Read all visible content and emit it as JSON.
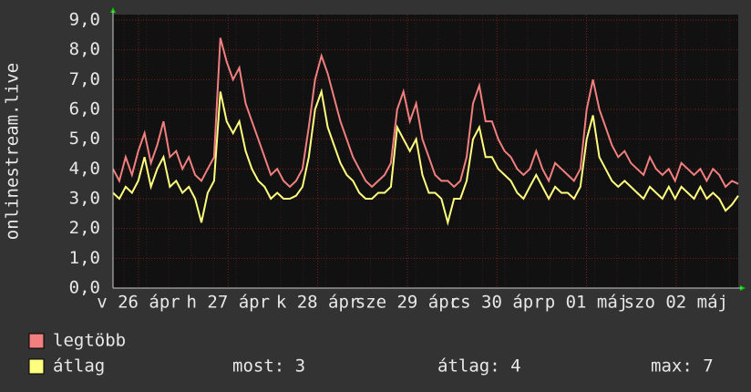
{
  "chart_data": {
    "type": "line",
    "y_label": "onlinestream.live",
    "day_labels": [
      "v 26 ápr",
      "h 27 ápr",
      "k 28 ápr",
      "sze 29 ápr",
      "cs 30 ápr",
      "p 01 máj",
      "szo 02 máj"
    ],
    "ylim": [
      0,
      9
    ],
    "yticks": [
      {
        "value": 0,
        "label": "0,0"
      },
      {
        "value": 1,
        "label": "1,0"
      },
      {
        "value": 2,
        "label": "2,0"
      },
      {
        "value": 3,
        "label": "3,0"
      },
      {
        "value": 4,
        "label": "4,0"
      },
      {
        "value": 5,
        "label": "5,0"
      },
      {
        "value": 6,
        "label": "6,0"
      },
      {
        "value": 7,
        "label": "7,0"
      },
      {
        "value": 8,
        "label": "8,0"
      },
      {
        "value": 9,
        "label": "9,0"
      }
    ],
    "grid": true,
    "series": [
      {
        "name": "legtöbb",
        "color": "#f27f7f",
        "values": [
          4.0,
          3.6,
          4.4,
          3.8,
          4.6,
          5.2,
          4.2,
          4.8,
          5.6,
          4.4,
          4.6,
          4.0,
          4.4,
          3.8,
          3.6,
          4.0,
          4.4,
          8.4,
          7.6,
          7.0,
          7.4,
          6.2,
          5.6,
          5.0,
          4.4,
          3.8,
          4.0,
          3.6,
          3.4,
          3.6,
          4.0,
          5.4,
          7.0,
          7.8,
          7.2,
          6.4,
          5.6,
          5.0,
          4.4,
          4.0,
          3.6,
          3.4,
          3.6,
          3.8,
          4.2,
          6.0,
          6.6,
          5.6,
          6.2,
          5.0,
          4.4,
          3.8,
          3.6,
          3.6,
          3.4,
          3.6,
          4.4,
          6.2,
          6.8,
          5.6,
          5.6,
          5.0,
          4.6,
          4.4,
          4.0,
          3.8,
          4.0,
          4.6,
          4.0,
          3.6,
          4.2,
          4.0,
          3.8,
          3.6,
          4.0,
          6.0,
          7.0,
          6.0,
          5.4,
          4.8,
          4.4,
          4.6,
          4.2,
          4.0,
          3.8,
          4.4,
          4.0,
          3.8,
          4.0,
          3.6,
          4.2,
          4.0,
          3.8,
          4.0,
          3.6,
          4.0,
          3.8,
          3.4,
          3.6,
          3.5
        ]
      },
      {
        "name": "átlag",
        "color": "#ffff7f",
        "values": [
          3.2,
          3.0,
          3.4,
          3.2,
          3.6,
          4.4,
          3.4,
          4.0,
          4.4,
          3.4,
          3.6,
          3.2,
          3.4,
          3.0,
          2.2,
          3.2,
          3.6,
          6.6,
          5.6,
          5.2,
          5.6,
          4.6,
          4.0,
          3.6,
          3.4,
          3.0,
          3.2,
          3.0,
          3.0,
          3.1,
          3.4,
          4.4,
          6.0,
          6.6,
          5.4,
          4.8,
          4.2,
          3.8,
          3.6,
          3.2,
          3.0,
          3.0,
          3.2,
          3.2,
          3.4,
          5.4,
          5.0,
          4.6,
          5.0,
          3.8,
          3.2,
          3.2,
          3.0,
          2.2,
          3.0,
          3.0,
          3.6,
          5.0,
          5.4,
          4.4,
          4.4,
          4.0,
          3.8,
          3.6,
          3.2,
          3.0,
          3.4,
          3.8,
          3.4,
          3.0,
          3.4,
          3.2,
          3.2,
          3.0,
          3.4,
          5.0,
          5.8,
          4.4,
          4.0,
          3.6,
          3.4,
          3.6,
          3.4,
          3.2,
          3.0,
          3.4,
          3.2,
          3.0,
          3.4,
          3.0,
          3.4,
          3.2,
          3.0,
          3.4,
          3.0,
          3.2,
          3.0,
          2.6,
          2.8,
          3.1
        ]
      }
    ],
    "stats": [
      "most: 3",
      "átlag: 4",
      "max: 7"
    ]
  }
}
